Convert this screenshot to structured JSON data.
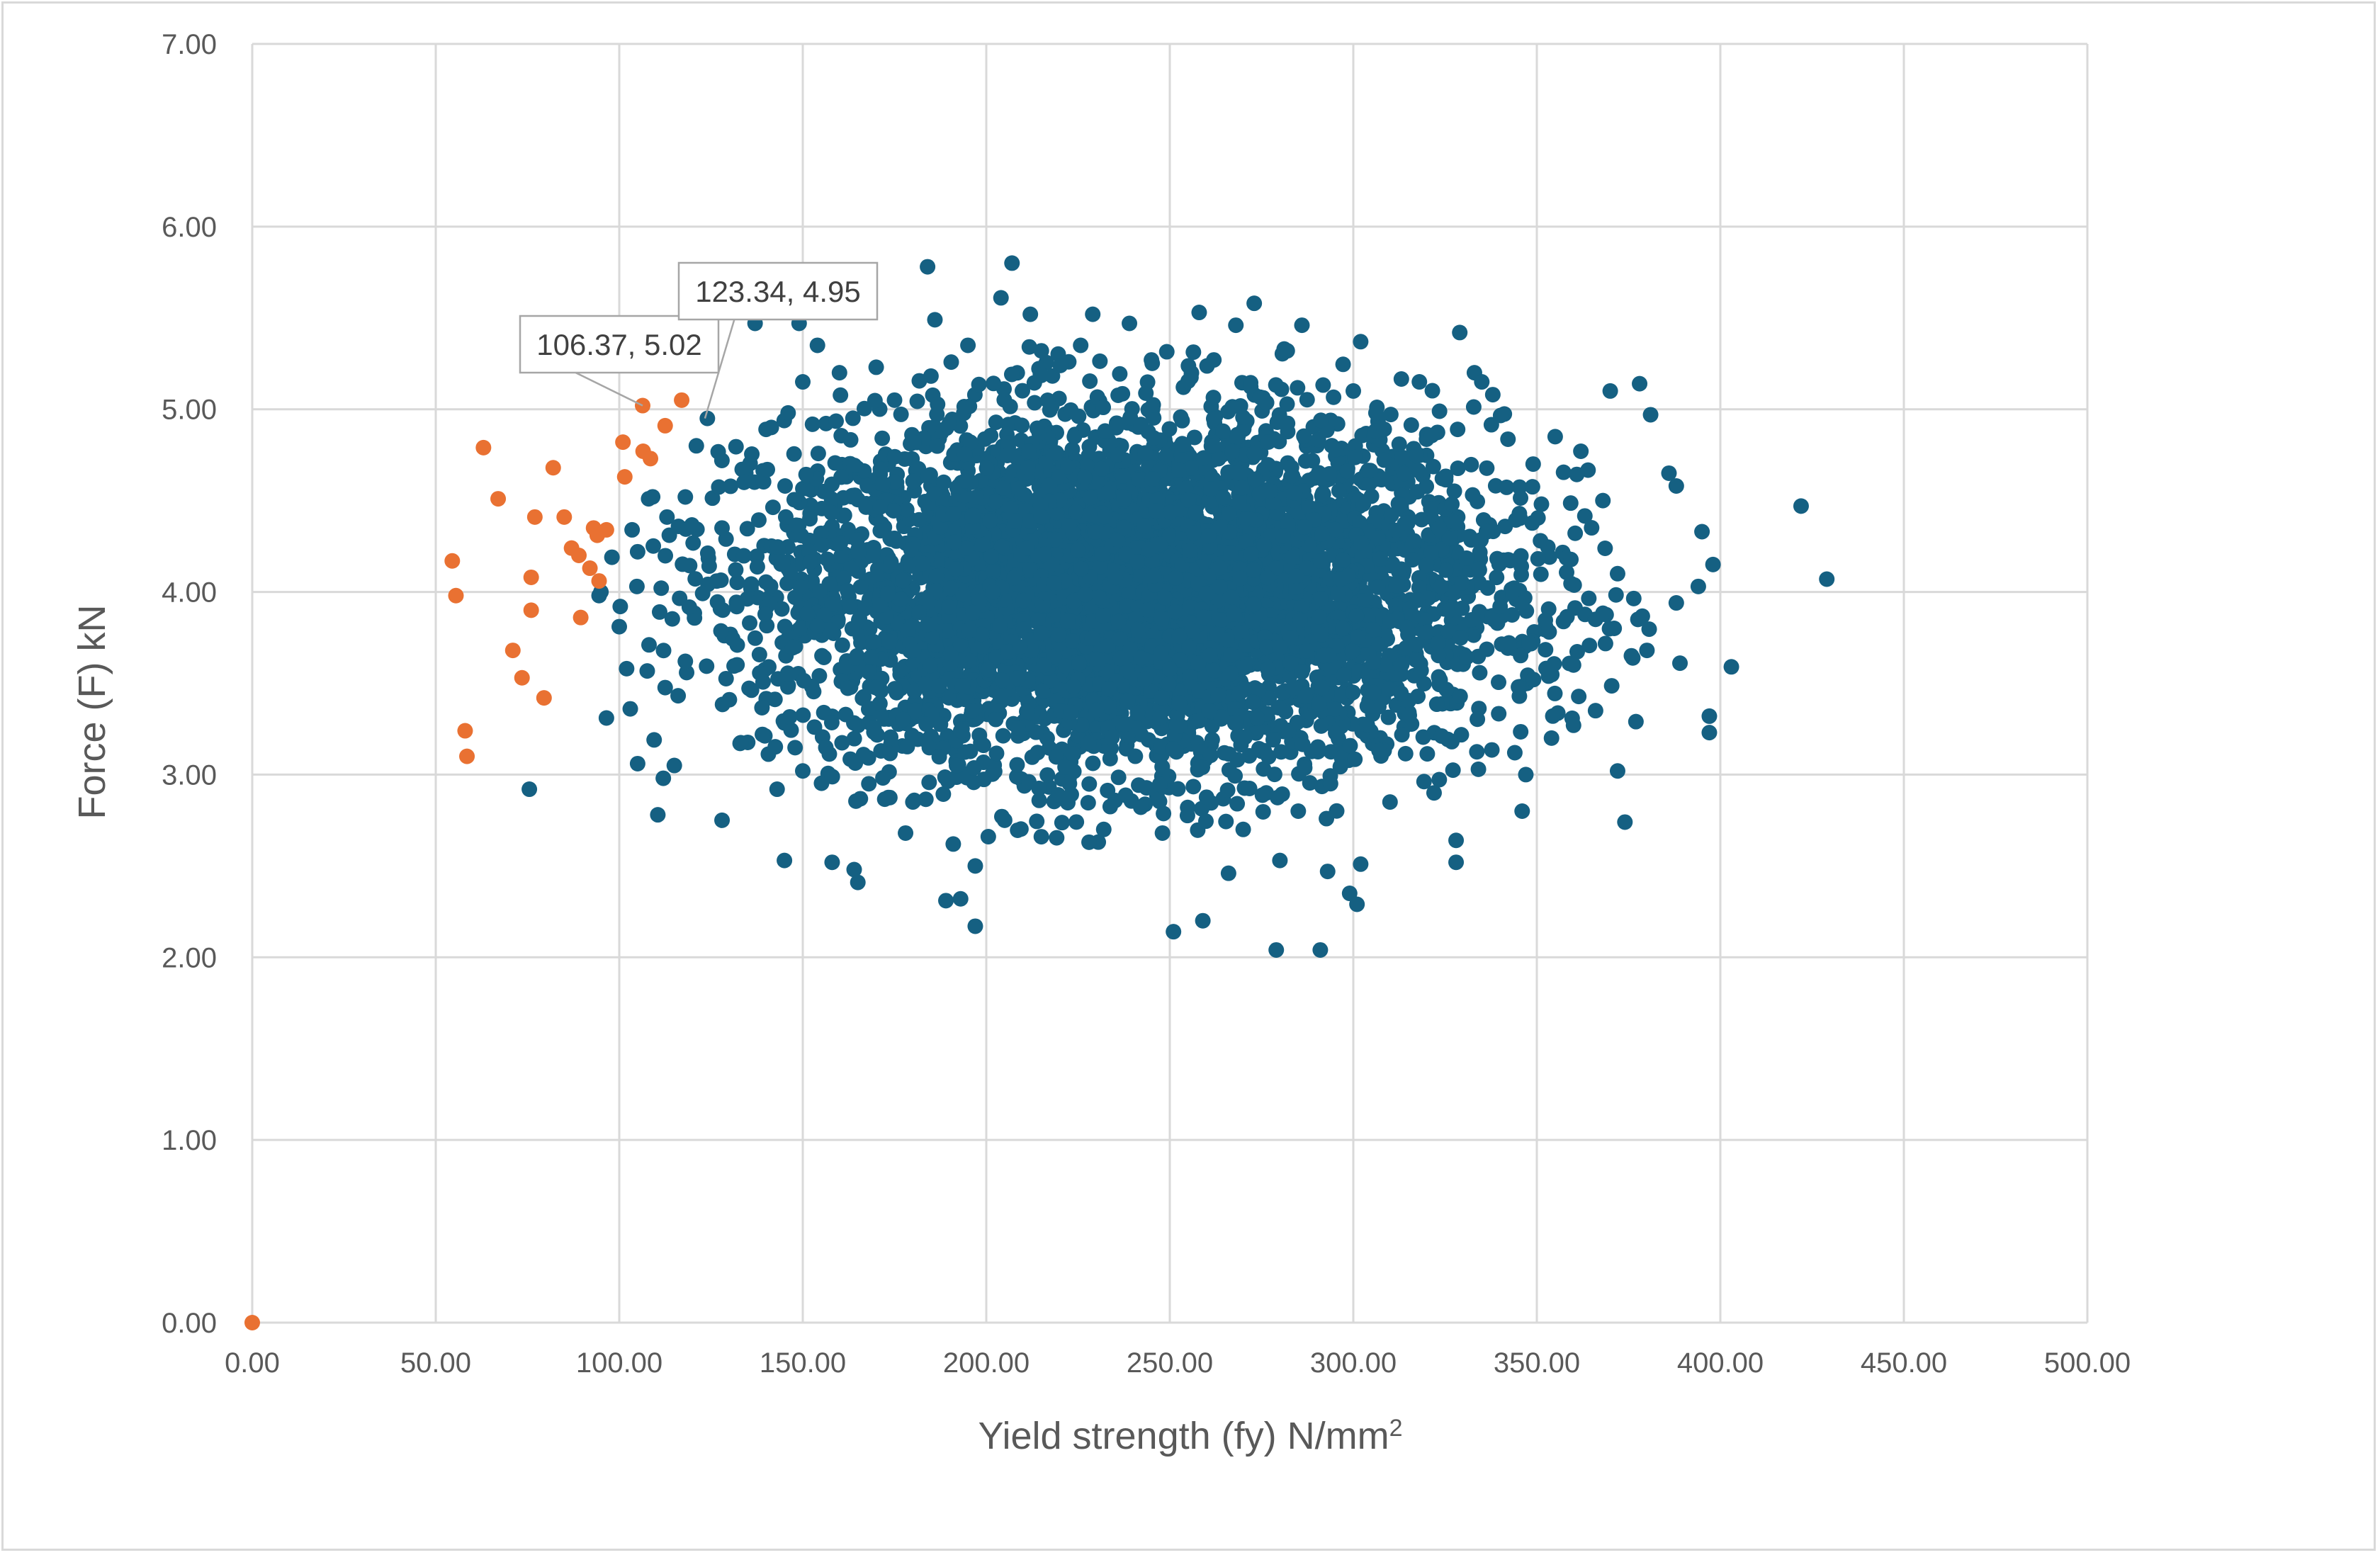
{
  "chart_data": {
    "type": "scatter",
    "xlabel": "Yield strength (fy)  N/mm",
    "xlabel_superscript": "2",
    "ylabel": "Force (F)  kN",
    "xlim": [
      0,
      500
    ],
    "ylim": [
      0,
      7
    ],
    "x_ticks": [
      "0.00",
      "50.00",
      "100.00",
      "150.00",
      "200.00",
      "250.00",
      "300.00",
      "350.00",
      "400.00",
      "450.00",
      "500.00"
    ],
    "y_ticks": [
      "0.00",
      "1.00",
      "2.00",
      "3.00",
      "4.00",
      "5.00",
      "6.00",
      "7.00"
    ],
    "grid": true,
    "legend": "none",
    "series": [
      {
        "color": "#156082",
        "note": "dense cloud of several thousand points, centered near x=240, y=4.0",
        "cloud": {
          "x_mean": 240,
          "x_sd": 50,
          "y_mean": 4.0,
          "y_sd": 0.48,
          "count": 5200,
          "x_min": 115,
          "x_max": 400,
          "y_min": 2.6,
          "y_max": 5.4
        },
        "points": [
          [
            75.5,
            2.92
          ],
          [
            96.5,
            3.31
          ],
          [
            103,
            3.36
          ],
          [
            105,
            3.06
          ],
          [
            110.5,
            2.78
          ],
          [
            109.5,
            3.19
          ],
          [
            112,
            2.98
          ],
          [
            128,
            2.75
          ],
          [
            94.5,
            3.98
          ],
          [
            95,
            4.0
          ],
          [
            98,
            4.19
          ],
          [
            103.5,
            4.34
          ],
          [
            108,
            4.51
          ],
          [
            113,
            4.41
          ],
          [
            118,
            4.52
          ],
          [
            121,
            4.8
          ],
          [
            124,
            4.95
          ],
          [
            100,
            3.81
          ],
          [
            105,
            4.22
          ],
          [
            111,
            3.89
          ],
          [
            102,
            3.58
          ],
          [
            115,
            3.05
          ],
          [
            130,
            3.41
          ],
          [
            118,
            3.62
          ],
          [
            137,
            5.47
          ],
          [
            149,
            5.47
          ],
          [
            154,
            5.35
          ],
          [
            160,
            5.2
          ],
          [
            184,
            5.78
          ],
          [
            186,
            5.49
          ],
          [
            204,
            5.61
          ],
          [
            207,
            5.8
          ],
          [
            212,
            5.52
          ],
          [
            229,
            5.52
          ],
          [
            239,
            5.47
          ],
          [
            258,
            5.53
          ],
          [
            268,
            5.46
          ],
          [
            273,
            5.58
          ],
          [
            286,
            5.46
          ],
          [
            302,
            5.37
          ],
          [
            329,
            5.42
          ],
          [
            333,
            5.2
          ],
          [
            335,
            5.15
          ],
          [
            370,
            5.1
          ],
          [
            378,
            5.14
          ],
          [
            381,
            4.97
          ],
          [
            386,
            4.65
          ],
          [
            388,
            4.58
          ],
          [
            395,
            4.33
          ],
          [
            398,
            4.15
          ],
          [
            403,
            3.59
          ],
          [
            397,
            3.32
          ],
          [
            397,
            3.23
          ],
          [
            374,
            2.74
          ],
          [
            372,
            3.02
          ],
          [
            377,
            3.29
          ],
          [
            389,
            3.61
          ],
          [
            394,
            4.03
          ],
          [
            388,
            3.94
          ],
          [
            380,
            3.68
          ],
          [
            422,
            4.47
          ],
          [
            429,
            4.07
          ],
          [
            145,
            2.53
          ],
          [
            158,
            2.52
          ],
          [
            164,
            2.48
          ],
          [
            165,
            2.41
          ],
          [
            178,
            2.68
          ],
          [
            189,
            2.31
          ],
          [
            191,
            2.62
          ],
          [
            193,
            2.32
          ],
          [
            197,
            2.5
          ],
          [
            197,
            2.17
          ],
          [
            228,
            2.63
          ],
          [
            251,
            2.14
          ],
          [
            259,
            2.2
          ],
          [
            266,
            2.46
          ],
          [
            279,
            2.04
          ],
          [
            280,
            2.53
          ],
          [
            291,
            2.04
          ],
          [
            293,
            2.47
          ],
          [
            299,
            2.35
          ],
          [
            301,
            2.29
          ],
          [
            302,
            2.51
          ],
          [
            328,
            2.64
          ],
          [
            328,
            2.52
          ],
          [
            346,
            2.8
          ],
          [
            347,
            3.0
          ],
          [
            360,
            3.27
          ],
          [
            366,
            3.35
          ],
          [
            344,
            3.12
          ],
          [
            354,
            3.2
          ],
          [
            143,
            2.92
          ],
          [
            150,
            3.02
          ],
          [
            139,
            3.22
          ],
          [
            146,
            3.55
          ],
          [
            132,
            3.92
          ],
          [
            128,
            4.35
          ],
          [
            134,
            4.6
          ],
          [
            140,
            4.89
          ],
          [
            146,
            4.98
          ],
          [
            150,
            5.15
          ],
          [
            355,
            4.85
          ],
          [
            362,
            4.77
          ],
          [
            349,
            4.7
          ],
          [
            368,
            4.5
          ],
          [
            372,
            4.1
          ],
          [
            366,
            3.85
          ],
          [
            360,
            3.6
          ],
          [
            345,
            3.48
          ],
          [
            340,
            3.92
          ],
          [
            351,
            4.28
          ],
          [
            170,
            5.23
          ],
          [
            175,
            5.05
          ],
          [
            195,
            5.35
          ],
          [
            215,
            5.32
          ],
          [
            245,
            5.27
          ],
          [
            262,
            5.27
          ],
          [
            282,
            5.32
          ],
          [
            300,
            5.1
          ],
          [
            318,
            5.15
          ],
          [
            338,
            5.08
          ],
          [
            180,
            2.85
          ],
          [
            205,
            2.75
          ],
          [
            232,
            2.7
          ],
          [
            248,
            2.68
          ],
          [
            270,
            2.7
          ],
          [
            285,
            2.8
          ],
          [
            310,
            2.85
          ],
          [
            322,
            2.9
          ],
          [
            168,
            2.95
          ],
          [
            215,
            2.66
          ]
        ]
      },
      {
        "color": "#E97132",
        "points": [
          [
            0,
            0
          ],
          [
            54.5,
            4.17
          ],
          [
            55.5,
            3.98
          ],
          [
            58,
            3.24
          ],
          [
            58.5,
            3.1
          ],
          [
            63,
            4.79
          ],
          [
            67,
            4.51
          ],
          [
            71,
            3.68
          ],
          [
            73.5,
            3.53
          ],
          [
            76,
            4.08
          ],
          [
            76,
            3.9
          ],
          [
            77,
            4.41
          ],
          [
            79.5,
            3.42
          ],
          [
            82,
            4.68
          ],
          [
            85,
            4.41
          ],
          [
            87,
            4.24
          ],
          [
            89,
            4.2
          ],
          [
            89.5,
            3.86
          ],
          [
            92,
            4.13
          ],
          [
            93,
            4.35
          ],
          [
            94,
            4.31
          ],
          [
            94.5,
            4.06
          ],
          [
            96.5,
            4.34
          ],
          [
            101,
            4.82
          ],
          [
            101.5,
            4.63
          ],
          [
            106.37,
            5.02
          ],
          [
            106.5,
            4.77
          ],
          [
            108.5,
            4.73
          ],
          [
            112.5,
            4.91
          ],
          [
            117,
            5.05
          ]
        ]
      }
    ],
    "annotations": [
      {
        "text": "106.37, 5.02",
        "x": 106.37,
        "y": 5.02
      },
      {
        "text": "123.34, 4.95",
        "x": 123.34,
        "y": 4.95
      }
    ]
  }
}
